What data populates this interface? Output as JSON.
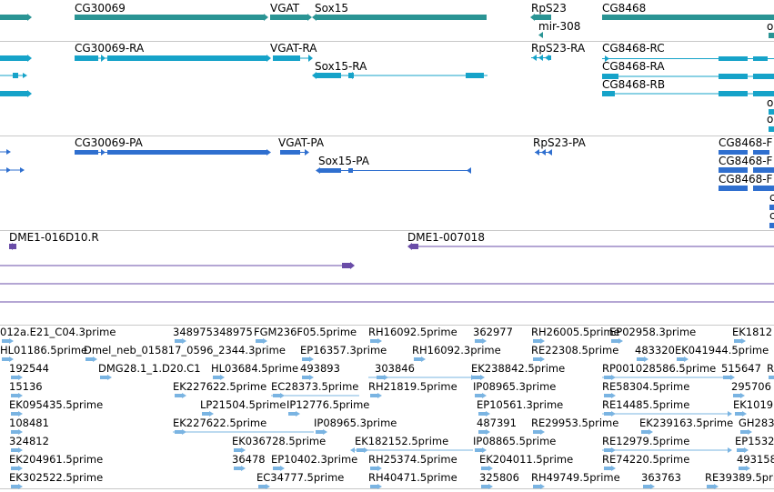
{
  "tracks": {
    "genes": {
      "features": [
        {
          "label": "CG30069"
        },
        {
          "label": "VGAT"
        },
        {
          "label": "Sox15"
        },
        {
          "label": "RpS23"
        },
        {
          "label": "mir-308"
        },
        {
          "label": "CG8468"
        },
        {
          "label": "o"
        }
      ]
    },
    "transcripts": {
      "features": [
        {
          "label": "CG30069-RA"
        },
        {
          "label": "VGAT-RA"
        },
        {
          "label": "Sox15-RA"
        },
        {
          "label": "RpS23-RA"
        },
        {
          "label": "CG8468-RC"
        },
        {
          "label": "CG8468-RA"
        },
        {
          "label": "CG8468-RB"
        },
        {
          "label": "o"
        },
        {
          "label": "o"
        },
        {
          "label": "o"
        }
      ]
    },
    "proteins": {
      "features": [
        {
          "label": "CG30069-PA"
        },
        {
          "label": "VGAT-PA"
        },
        {
          "label": "Sox15-PA"
        },
        {
          "label": "RpS23-PA"
        },
        {
          "label": "CG8468-F"
        },
        {
          "label": "CG8468-F"
        },
        {
          "label": "CG8468-F"
        },
        {
          "label": "c"
        },
        {
          "label": "c"
        }
      ]
    },
    "clones": {
      "features": [
        {
          "label": "DME1-016D10.R"
        },
        {
          "label": "DME1-007018"
        }
      ]
    },
    "ests": {
      "features": [
        {
          "label": "012a.E21_C04.3prime"
        },
        {
          "label": "348975348975"
        },
        {
          "label": "FGM236F05.5prime"
        },
        {
          "label": "RH16092.5prime"
        },
        {
          "label": "362977"
        },
        {
          "label": "RH26005.5prime"
        },
        {
          "label": "EP02958.3prime"
        },
        {
          "label": "EK1812"
        },
        {
          "label": "HL01186.5prime"
        },
        {
          "label": "Dmel_neb_015817_0596_2344.3prime"
        },
        {
          "label": "EP16357.3prime"
        },
        {
          "label": "RH16092.3prime"
        },
        {
          "label": "RE22308.5prime"
        },
        {
          "label": "483320"
        },
        {
          "label": "EK041944.5prime"
        },
        {
          "label": "192544"
        },
        {
          "label": "DMG28.1_1.D20.C1"
        },
        {
          "label": "HL03684.5prime"
        },
        {
          "label": "493893"
        },
        {
          "label": "303846"
        },
        {
          "label": "EK238842.5prime"
        },
        {
          "label": "RP001028586.5prime"
        },
        {
          "label": "515647"
        },
        {
          "label": "R"
        },
        {
          "label": "15136"
        },
        {
          "label": "EK227622.5prime"
        },
        {
          "label": "EC28373.5prime"
        },
        {
          "label": "RH21819.5prime"
        },
        {
          "label": "IP08965.3prime"
        },
        {
          "label": "RE58304.5prime"
        },
        {
          "label": "295706"
        },
        {
          "label": "EK095435.5prime"
        },
        {
          "label": "LP21504.5prime"
        },
        {
          "label": "IP12776.5prime"
        },
        {
          "label": "EP10561.3prime"
        },
        {
          "label": "RE14485.5prime"
        },
        {
          "label": "EK1019"
        },
        {
          "label": "108481"
        },
        {
          "label": "EK227622.5prime"
        },
        {
          "label": "IP08965.3prime"
        },
        {
          "label": "487391"
        },
        {
          "label": "RE29953.5prime"
        },
        {
          "label": "EK239163.5prime"
        },
        {
          "label": "GH283"
        },
        {
          "label": "324812"
        },
        {
          "label": "EK036728.5prime"
        },
        {
          "label": "EK182152.5prime"
        },
        {
          "label": "IP08865.5prime"
        },
        {
          "label": "RE12979.5prime"
        },
        {
          "label": "EP1532"
        },
        {
          "label": "36478"
        },
        {
          "label": "EP10402.3prime"
        },
        {
          "label": "RH25374.5prime"
        },
        {
          "label": "EK204011.5prime"
        },
        {
          "label": "RE74220.5prime"
        },
        {
          "label": "493158"
        },
        {
          "label": "EK204961.5prime"
        },
        {
          "label": "EK302522.5prime"
        },
        {
          "label": "EC34777.5prime"
        },
        {
          "label": "RH40471.5prime"
        },
        {
          "label": "325806"
        },
        {
          "label": "RH49749.5prime"
        },
        {
          "label": "363763"
        },
        {
          "label": "RE39389.5prime"
        }
      ]
    }
  },
  "colors": {
    "gene": "#2a9494",
    "transcript": "#16a3c9",
    "protein": "#2f6fcf",
    "clone": "#6a4da8",
    "est": "#7ab4e2",
    "separator": "#c8c8c8"
  }
}
